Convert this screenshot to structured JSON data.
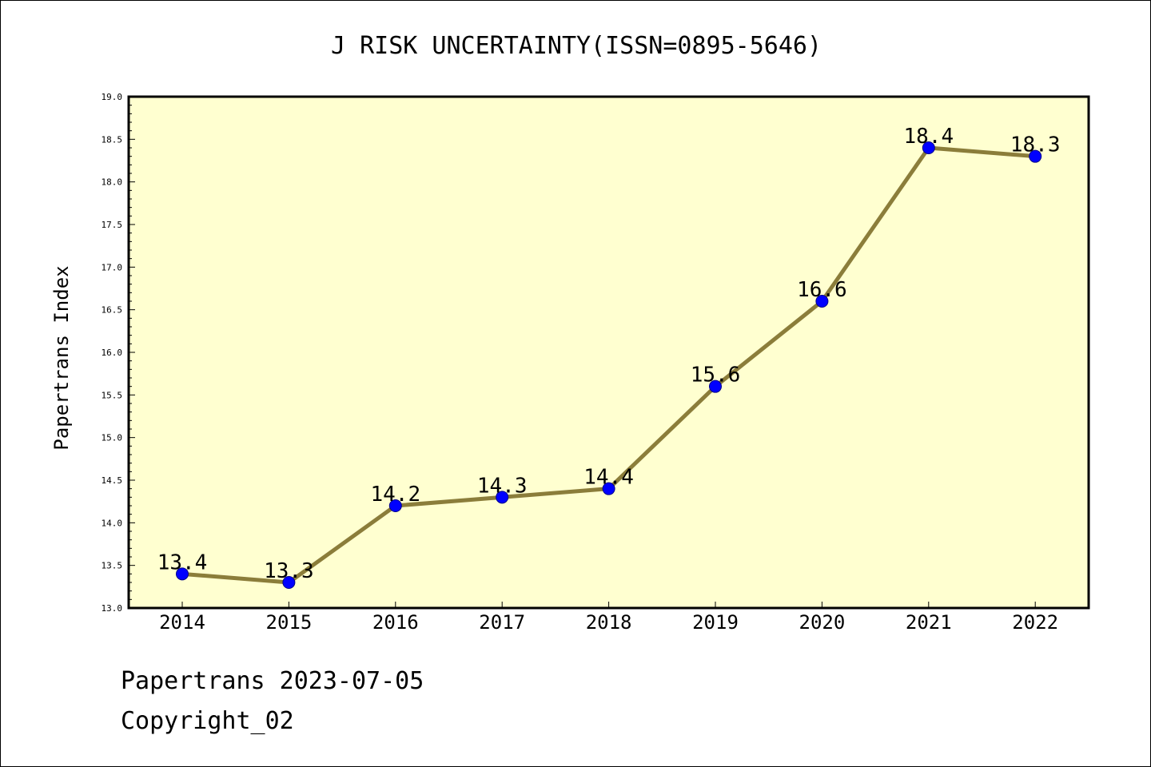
{
  "chart_data": {
    "type": "line",
    "title": "J RISK UNCERTAINTY(ISSN=0895-5646)",
    "xlabel": "",
    "ylabel": "Papertrans Index",
    "categories": [
      "2014",
      "2015",
      "2016",
      "2017",
      "2018",
      "2019",
      "2020",
      "2021",
      "2022"
    ],
    "values": [
      13.4,
      13.3,
      14.2,
      14.3,
      14.4,
      15.6,
      16.6,
      18.4,
      18.3
    ],
    "data_labels": [
      "13.4",
      "13.3",
      "14.2",
      "14.3",
      "14.4",
      "15.6",
      "16.6",
      "18.4",
      "18.3"
    ],
    "ylim": [
      13.0,
      19.0
    ],
    "yticks": [
      "13.0",
      "13.5",
      "14.0",
      "14.5",
      "15.0",
      "15.5",
      "16.0",
      "16.5",
      "17.0",
      "17.5",
      "18.0",
      "18.5",
      "19.0"
    ],
    "grid": false,
    "line_color": "#8b7d3a",
    "marker_color": "#0000ff",
    "plot_background": "#ffffd0"
  },
  "footer": {
    "line1": "Papertrans 2023-07-05",
    "line2": "Copyright_02"
  }
}
